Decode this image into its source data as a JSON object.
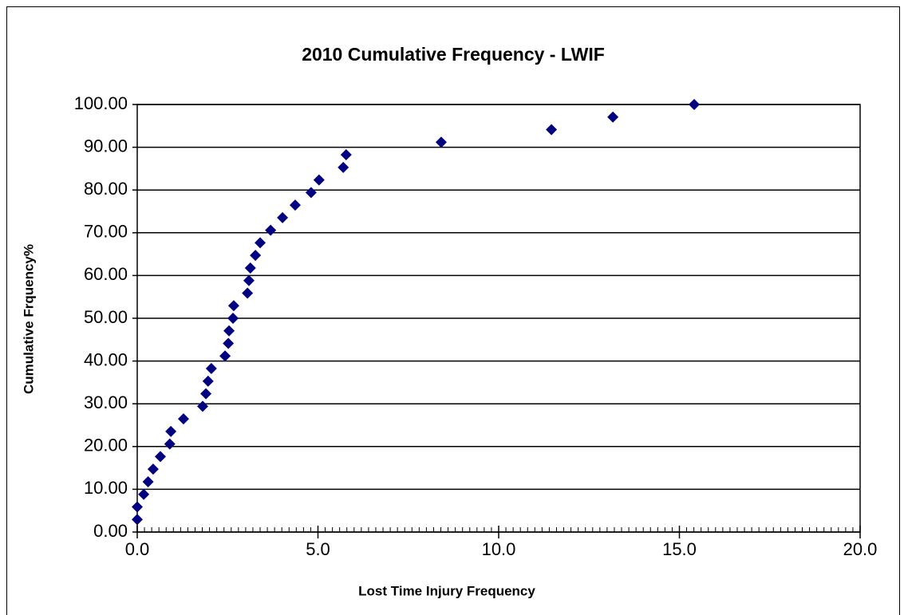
{
  "chart_data": {
    "type": "scatter",
    "title": "2010 Cumulative Frequency - LWIF",
    "xlabel": "Lost Time Injury Frequency",
    "ylabel": "Cumulative Frquency%",
    "color": "#000080",
    "x": [
      0.0,
      0.0,
      0.18,
      0.3,
      0.44,
      0.64,
      0.9,
      0.93,
      1.28,
      1.81,
      1.9,
      1.96,
      2.05,
      2.43,
      2.52,
      2.54,
      2.65,
      2.67,
      3.05,
      3.09,
      3.13,
      3.27,
      3.4,
      3.69,
      4.02,
      4.37,
      4.81,
      5.03,
      5.7,
      5.78,
      8.41,
      11.46,
      13.16,
      15.41
    ],
    "values": [
      2.94,
      5.88,
      8.82,
      11.76,
      14.71,
      17.65,
      20.59,
      23.53,
      26.47,
      29.41,
      32.35,
      35.29,
      38.24,
      41.18,
      44.12,
      47.06,
      50.0,
      52.94,
      55.88,
      58.82,
      61.76,
      64.71,
      67.65,
      70.59,
      73.53,
      76.47,
      79.41,
      82.35,
      85.29,
      88.24,
      91.18,
      94.12,
      97.06,
      100.0
    ],
    "xlim": [
      0,
      20
    ],
    "xticks": [
      {
        "value": 0,
        "label": "0.0"
      },
      {
        "value": 5,
        "label": "5.0"
      },
      {
        "value": 10,
        "label": "10.0"
      },
      {
        "value": 15,
        "label": "15.0"
      },
      {
        "value": 20,
        "label": "20.0"
      }
    ],
    "ylim": [
      0,
      100
    ],
    "yticks": [
      {
        "value": 0,
        "label": "0.00"
      },
      {
        "value": 10,
        "label": "10.00"
      },
      {
        "value": 20,
        "label": "20.00"
      },
      {
        "value": 30,
        "label": "30.00"
      },
      {
        "value": 40,
        "label": "40.00"
      },
      {
        "value": 50,
        "label": "50.00"
      },
      {
        "value": 60,
        "label": "60.00"
      },
      {
        "value": 70,
        "label": "70.00"
      },
      {
        "value": 80,
        "label": "80.00"
      },
      {
        "value": 90,
        "label": "90.00"
      },
      {
        "value": 100,
        "label": "100.00"
      }
    ],
    "grid": true
  }
}
